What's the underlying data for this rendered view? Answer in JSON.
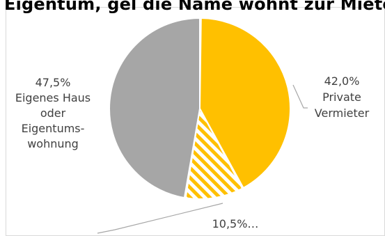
{
  "chart_data": {
    "type": "pie",
    "title": "Eigentum, gel die Name wohnt zur Miete",
    "slices": [
      {
        "label": "Private Vermieter",
        "value_label": "42,0%",
        "value": 42.0,
        "color": "#FFC000",
        "pattern": "solid"
      },
      {
        "label": "",
        "value_label": "10,5%…",
        "value": 10.5,
        "color": "#FFC000",
        "pattern": "hatched"
      },
      {
        "label": "Eigenes Haus oder Eigentums- wohnung",
        "value_label": "47,5%",
        "value": 47.5,
        "color": "#A6A6A6",
        "pattern": "solid"
      }
    ],
    "label_lines": {
      "a": [
        "42,0%",
        "Private",
        "Vermieter"
      ],
      "c": [
        "47,5%",
        "Eigenes Haus",
        "oder",
        "Eigentums-",
        "wohnung"
      ]
    }
  }
}
